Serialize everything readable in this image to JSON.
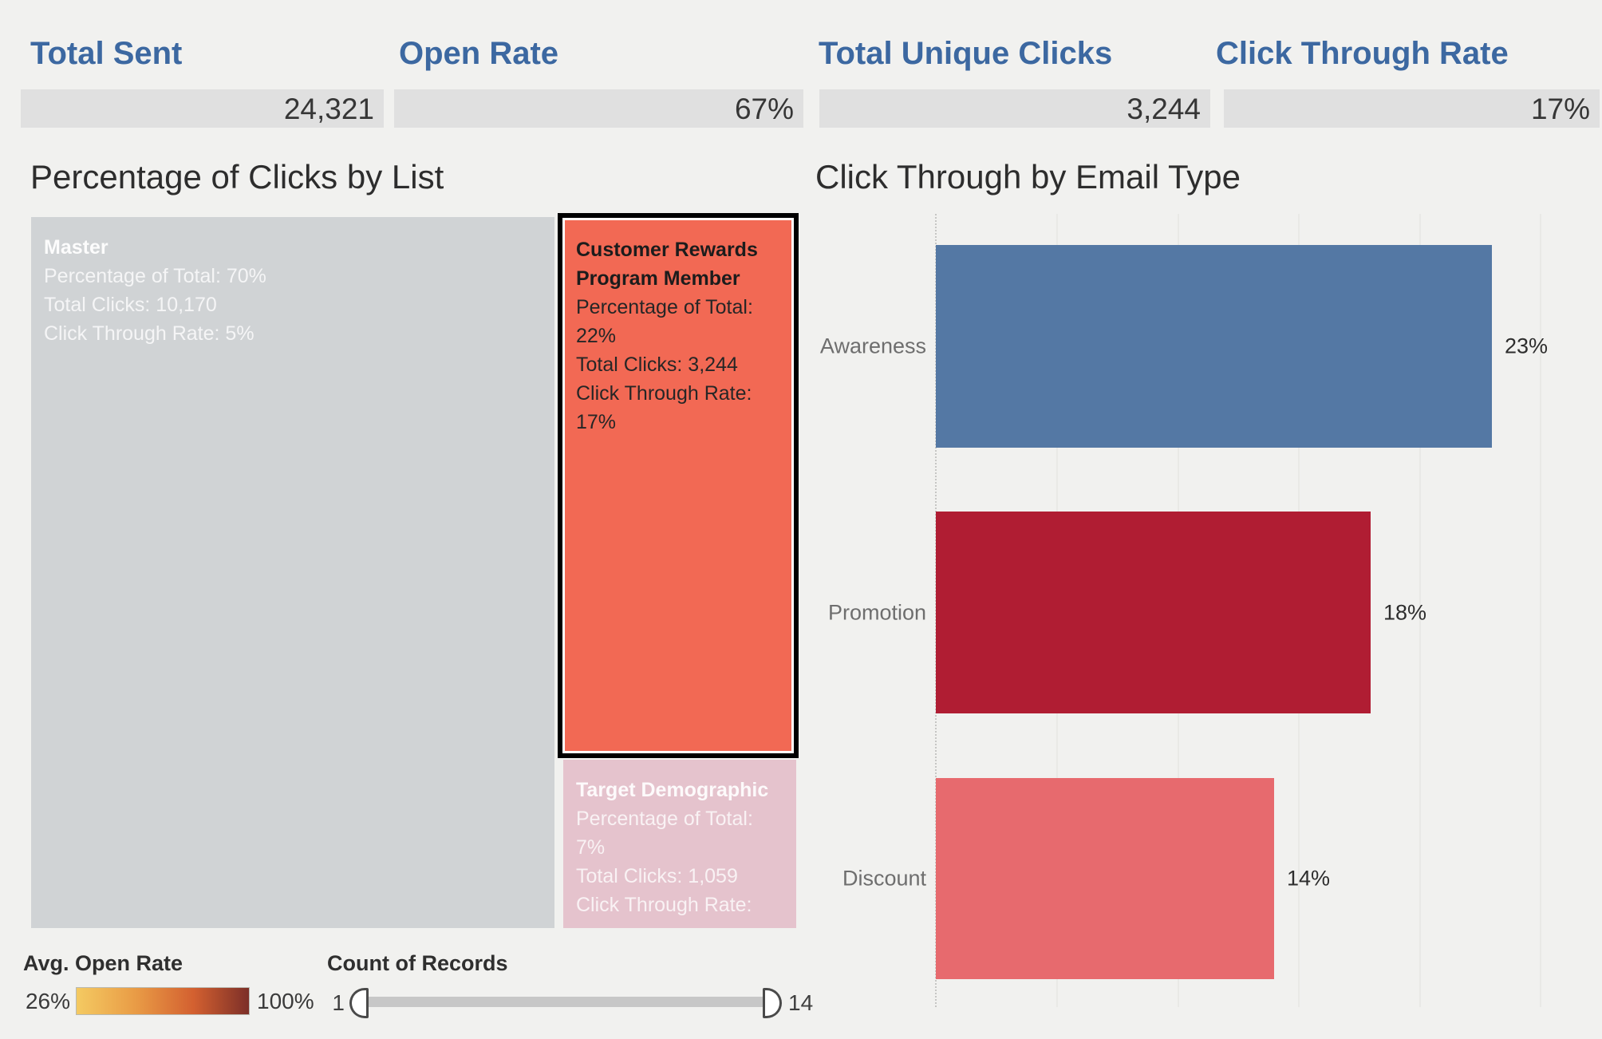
{
  "colors": {
    "background": "#f1f1ef",
    "kpi_header_blue": "#3c68a1",
    "kpi_box_gray": "#e0e0e0"
  },
  "kpis": [
    {
      "label": "Total Sent",
      "value": "24,321"
    },
    {
      "label": "Open Rate",
      "value": "67%"
    },
    {
      "label": "Total Unique Clicks",
      "value": "3,244"
    },
    {
      "label": "Click Through Rate",
      "value": "17%"
    }
  ],
  "chart_data": [
    {
      "type": "treemap",
      "title": "Percentage of Clicks by List",
      "nodes": [
        {
          "name": "Master",
          "lines": [
            "Percentage of Total: 70%",
            "Total Clicks: 10,170",
            "Click Through Rate: 5%"
          ],
          "percentage_of_total": 70,
          "total_clicks": 10170,
          "click_through_rate": "5%",
          "color": "#d0d3d5",
          "selected": false
        },
        {
          "name": "Customer Rewards Program Member",
          "lines": [
            "Percentage of Total: 22%",
            "Total Clicks: 3,244",
            "Click Through Rate: 17%"
          ],
          "percentage_of_total": 22,
          "total_clicks": 3244,
          "click_through_rate": "17%",
          "color": "#f26954",
          "selected": true
        },
        {
          "name": "Target Demographic",
          "lines": [
            "Percentage of Total: 7%",
            "Total Clicks: 1,059",
            "Click Through Rate:"
          ],
          "percentage_of_total": 7,
          "total_clicks": 1059,
          "click_through_rate": "",
          "color": "#e5c3cd",
          "selected": false
        }
      ]
    },
    {
      "type": "bar",
      "title": "Click Through by Email Type",
      "orientation": "horizontal",
      "categories": [
        "Awareness",
        "Promotion",
        "Discount"
      ],
      "values": [
        23,
        18,
        14
      ],
      "value_labels": [
        "23%",
        "18%",
        "14%"
      ],
      "colors": [
        "#5478a4",
        "#b01d33",
        "#e76a6e"
      ],
      "xlim": [
        0,
        25
      ],
      "gridline_step": 5,
      "legend_position": "none"
    }
  ],
  "color_legend": {
    "title": "Avg. Open Rate",
    "min_label": "26%",
    "max_label": "100%",
    "gradient": [
      "#f4ca62",
      "#e99c46",
      "#d36030",
      "#7c2f28"
    ]
  },
  "slider": {
    "title": "Count of Records",
    "min_label": "1",
    "max_label": "14"
  }
}
